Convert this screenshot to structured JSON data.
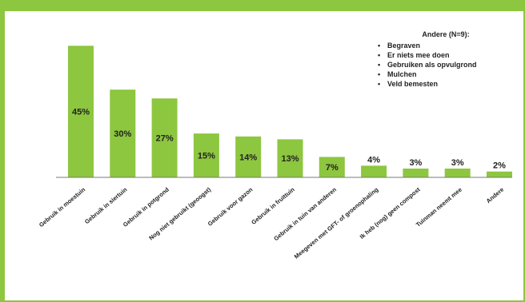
{
  "colors": {
    "frame": "#8dc63f",
    "bar": "#8dc63f",
    "axis": "#7a7a7a",
    "text": "#222222"
  },
  "chart_data": {
    "type": "bar",
    "categories": [
      "Gebruik in moestuin",
      "Gebruik in siertuin",
      "Gebruik in potgrond",
      "Nog niet gebruikt (geoogst)",
      "Gebruik voor gazon",
      "Gebruik in fruittuin",
      "Gebruik in tuin van anderen",
      "Meegeven met GFT- of groenophaling",
      "Ik heb (nog) geen compost",
      "Tuinman neemt mee",
      "Andere"
    ],
    "values": [
      45,
      30,
      27,
      15,
      14,
      13,
      7,
      4,
      3,
      3,
      2
    ],
    "data_labels": [
      "45%",
      "30%",
      "27%",
      "15%",
      "14%",
      "13%",
      "7%",
      "4%",
      "3%",
      "3%",
      "2%"
    ],
    "ylim": [
      0,
      47
    ],
    "grid": false,
    "legend_placement": "top-right"
  },
  "legend": {
    "title": "Andere (N=9):",
    "items": [
      "Begraven",
      "Er niets mee doen",
      "Gebruiken als opvulgrond",
      "Mulchen",
      "Veld bemesten"
    ]
  }
}
